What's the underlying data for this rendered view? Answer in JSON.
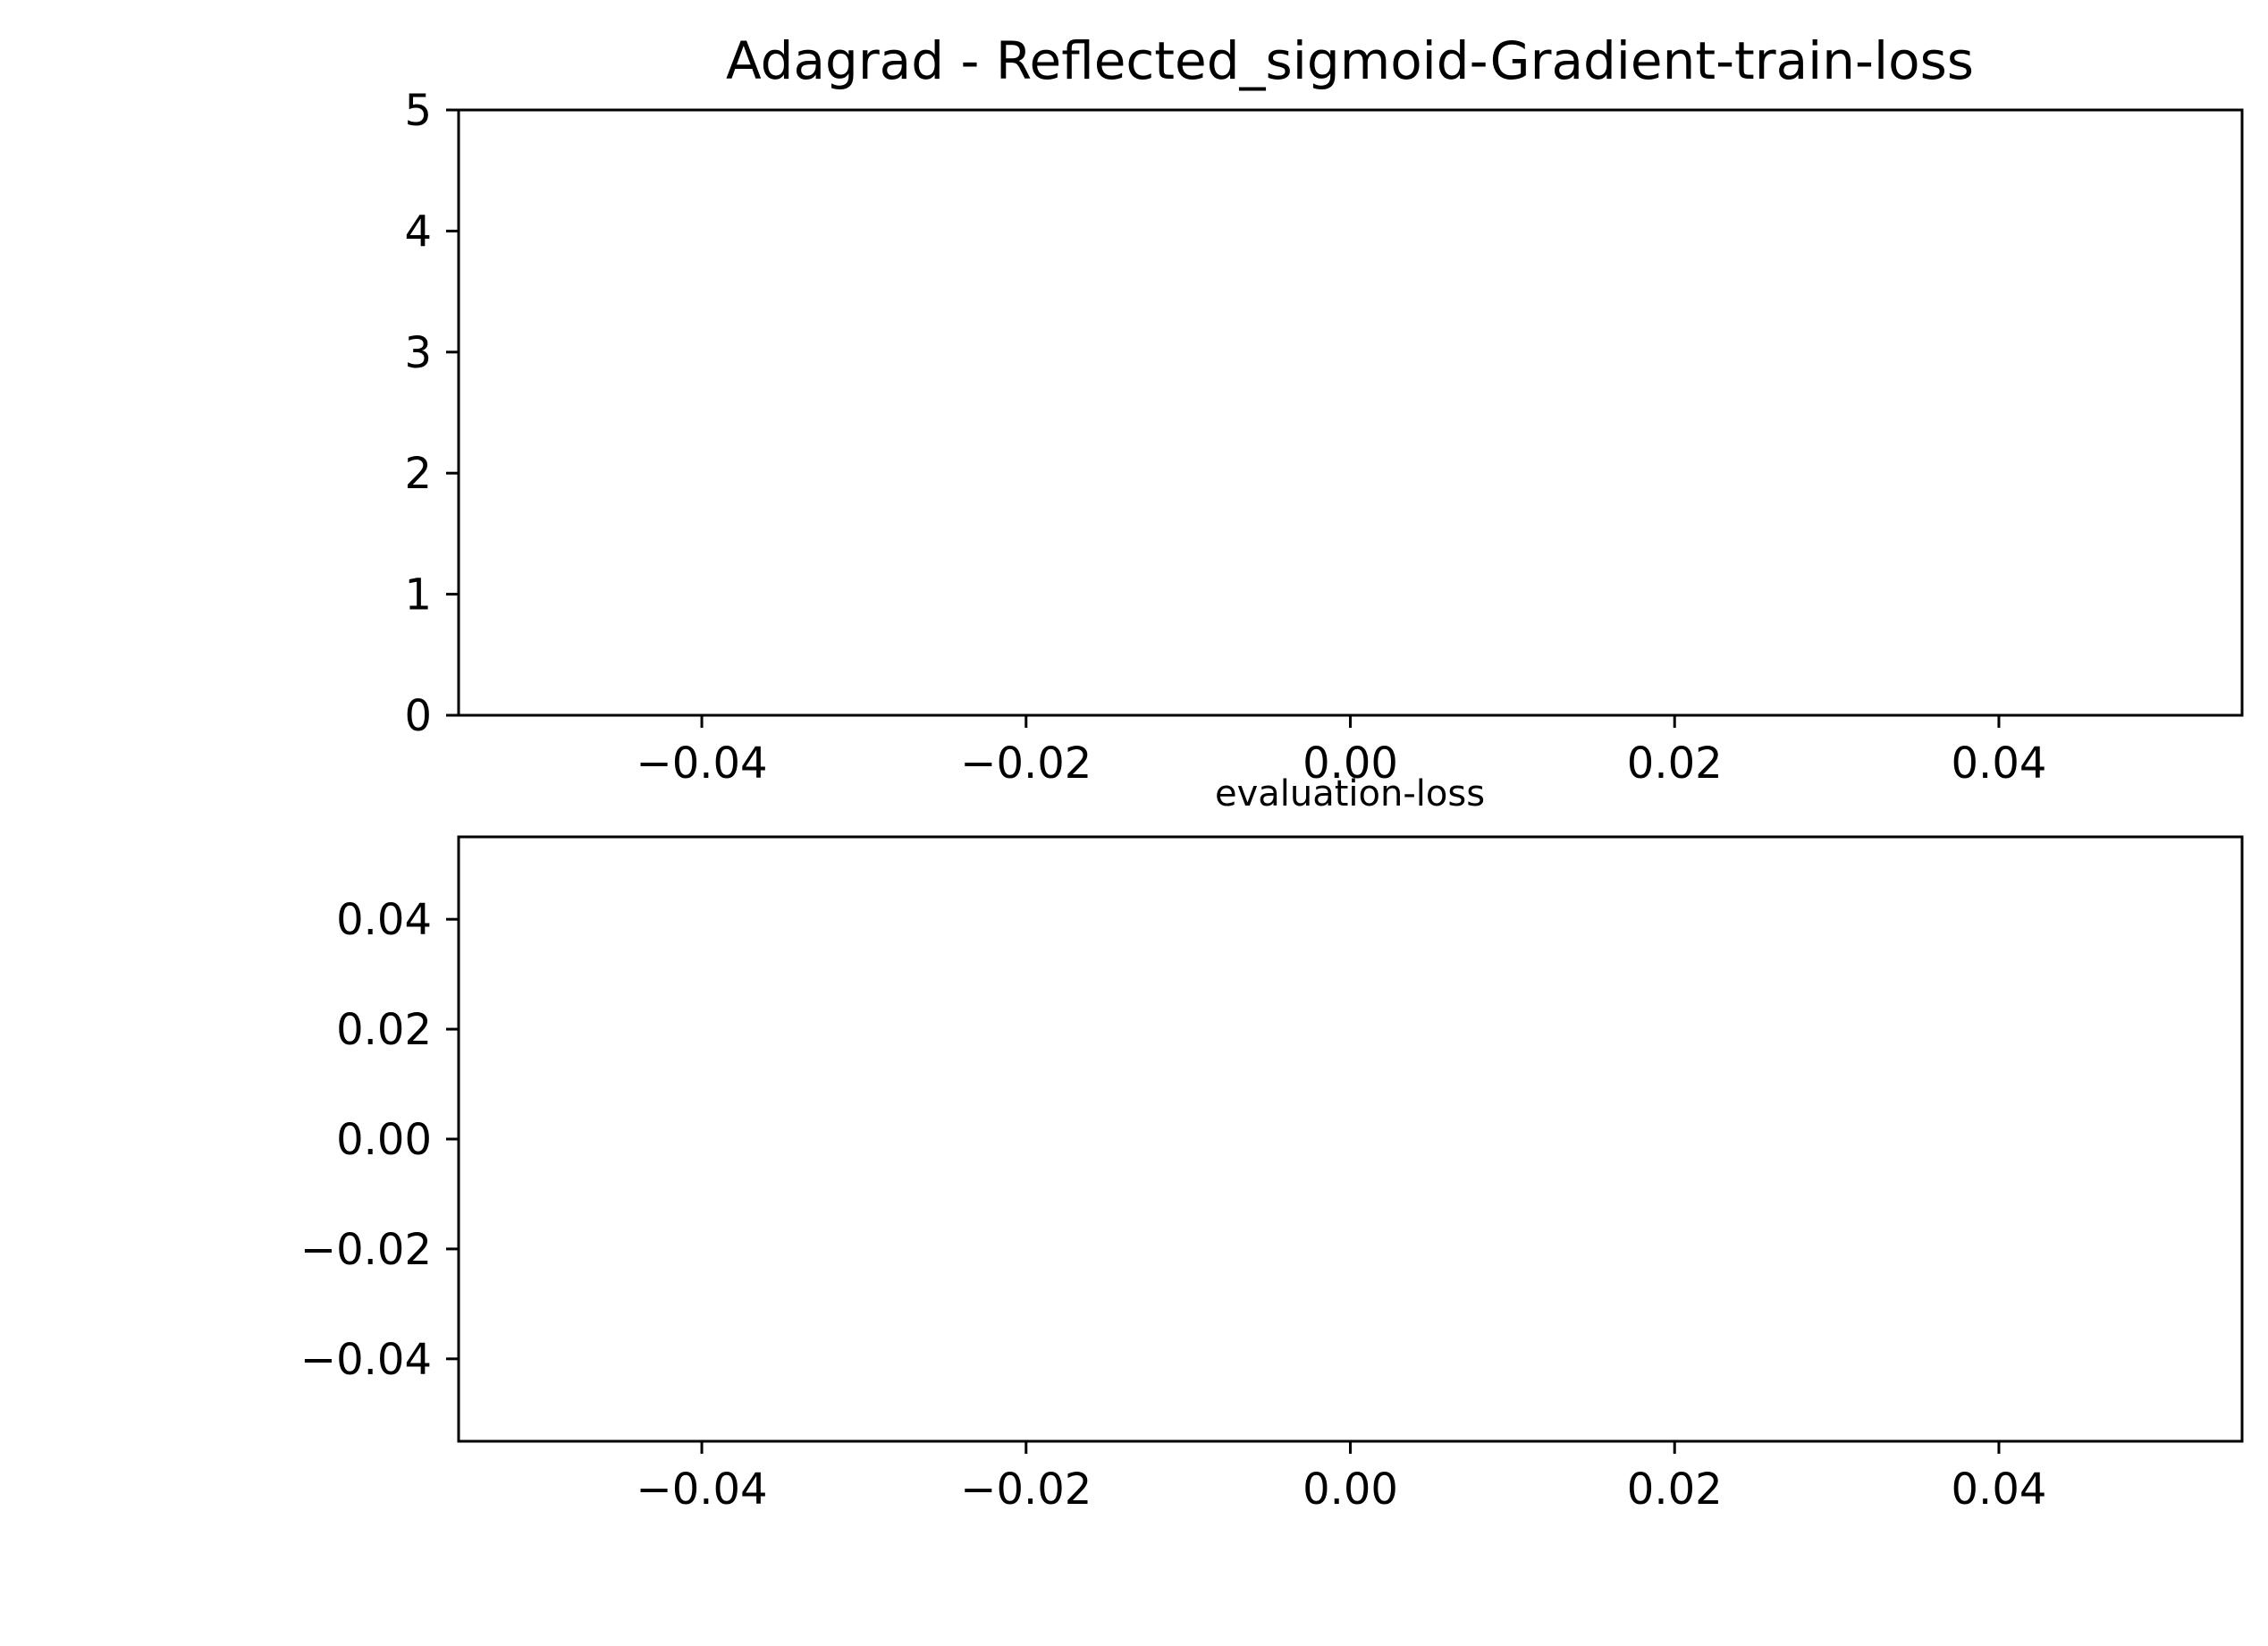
{
  "chart_data": [
    {
      "type": "line",
      "title": "Adagrad - Reflected_sigmoid-Gradient-train-loss",
      "xlabel": "",
      "ylabel": "",
      "xlim": [
        -0.055,
        0.055
      ],
      "ylim": [
        0,
        5
      ],
      "x_ticks": [
        -0.04,
        -0.02,
        0.0,
        0.02,
        0.04
      ],
      "x_tick_labels": [
        "−0.04",
        "−0.02",
        "0.00",
        "0.02",
        "0.04"
      ],
      "y_ticks": [
        0,
        1,
        2,
        3,
        4,
        5
      ],
      "y_tick_labels": [
        "0",
        "1",
        "2",
        "3",
        "4",
        "5"
      ],
      "series": [],
      "grid": false
    },
    {
      "type": "line",
      "title": "evaluation-loss",
      "xlabel": "",
      "ylabel": "",
      "xlim": [
        -0.055,
        0.055
      ],
      "ylim": [
        -0.055,
        0.055
      ],
      "x_ticks": [
        -0.04,
        -0.02,
        0.0,
        0.02,
        0.04
      ],
      "x_tick_labels": [
        "−0.04",
        "−0.02",
        "0.00",
        "0.02",
        "0.04"
      ],
      "y_ticks": [
        -0.04,
        -0.02,
        0.0,
        0.02,
        0.04
      ],
      "y_tick_labels": [
        "−0.04",
        "−0.02",
        "0.00",
        "0.02",
        "0.04"
      ],
      "series": [],
      "grid": false
    }
  ]
}
